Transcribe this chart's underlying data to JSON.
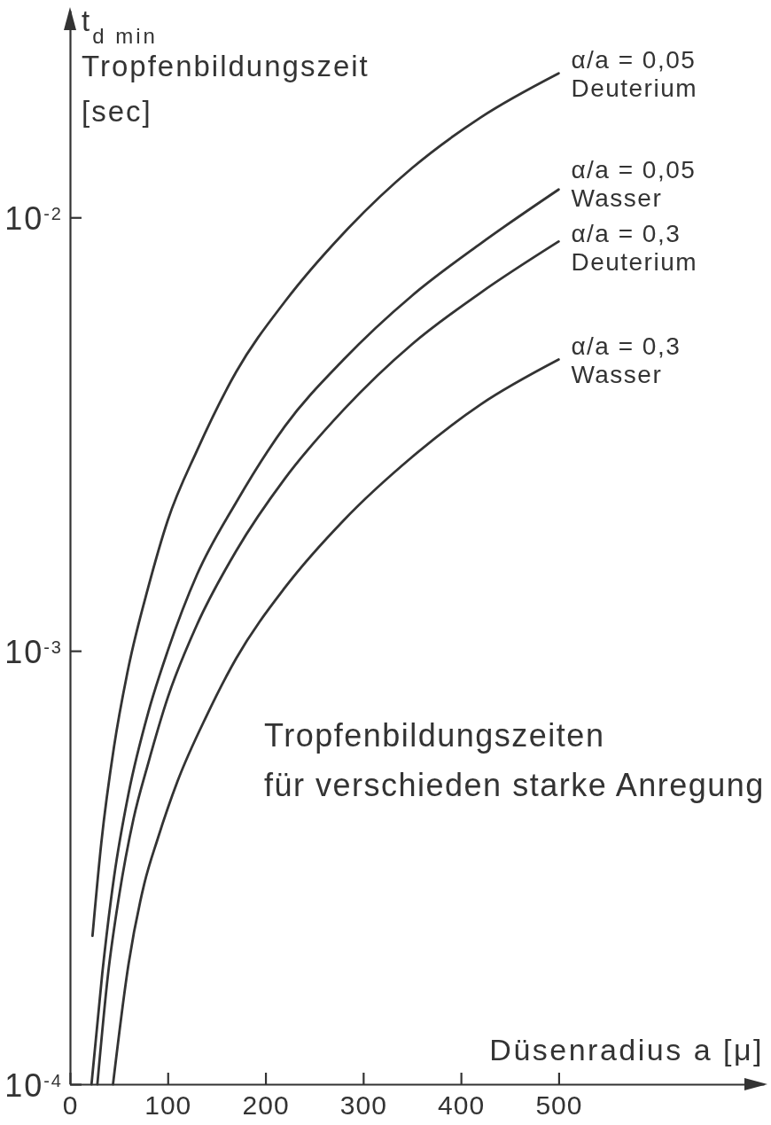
{
  "chart_data": {
    "type": "line",
    "xlabel": "Düsenradius a [μ]",
    "ylabel": "t$_{d min}$\nTropfenbildungszeit\n[sec]",
    "annotations": [
      "Tropfenbildungszeiten\nfür verschieden starke Anregung"
    ],
    "log": "y",
    "xlim": [
      0,
      710
    ],
    "ylim": [
      0.0001,
      0.03
    ],
    "xticks": [
      0,
      100,
      200,
      300,
      400,
      500
    ],
    "yticks": [
      {
        "value": 0.0001,
        "label": "10$^{-4}$"
      },
      {
        "value": 0.001,
        "label": "10$^{-3}$"
      },
      {
        "value": 0.01,
        "label": "10$^{-2}$"
      }
    ],
    "series": [
      {
        "name": "α/a = 0,05 Deuterium",
        "color": "#333333",
        "x": [
          23,
          32,
          45,
          60,
          80,
          100,
          130,
          170,
          220,
          280,
          350,
          420,
          500
        ],
        "values": [
          0.00022,
          0.00036,
          0.0006,
          0.00092,
          0.0014,
          0.002,
          0.0029,
          0.0044,
          0.0064,
          0.0092,
          0.013,
          0.017,
          0.0215
        ]
      },
      {
        "name": "α/a = 0,05 Wasser",
        "color": "#333333",
        "x": [
          22,
          33,
          45,
          60,
          80,
          100,
          130,
          170,
          220,
          280,
          350,
          420,
          500
        ],
        "values": [
          0.0001,
          0.00018,
          0.0003,
          0.00047,
          0.00072,
          0.001,
          0.0015,
          0.0022,
          0.0033,
          0.0047,
          0.0066,
          0.0087,
          0.0116
        ]
      },
      {
        "name": "α/a = 0,3 Deuterium",
        "color": "#333333",
        "x": [
          28,
          39,
          50,
          65,
          80,
          100,
          130,
          170,
          220,
          280,
          350,
          420,
          500
        ],
        "values": [
          0.0001,
          0.00018,
          0.00027,
          0.00041,
          0.00055,
          0.00078,
          0.00115,
          0.0017,
          0.0025,
          0.0036,
          0.0051,
          0.0067,
          0.0088
        ]
      },
      {
        "name": "α/a = 0,3 Wasser",
        "color": "#333333",
        "x": [
          44,
          60,
          76,
          90,
          110,
          140,
          170,
          220,
          280,
          350,
          420,
          500
        ],
        "values": [
          0.0001,
          0.00019,
          0.00029,
          0.00037,
          0.0005,
          0.00071,
          0.00096,
          0.0014,
          0.002,
          0.0028,
          0.0037,
          0.0047
        ]
      }
    ]
  }
}
